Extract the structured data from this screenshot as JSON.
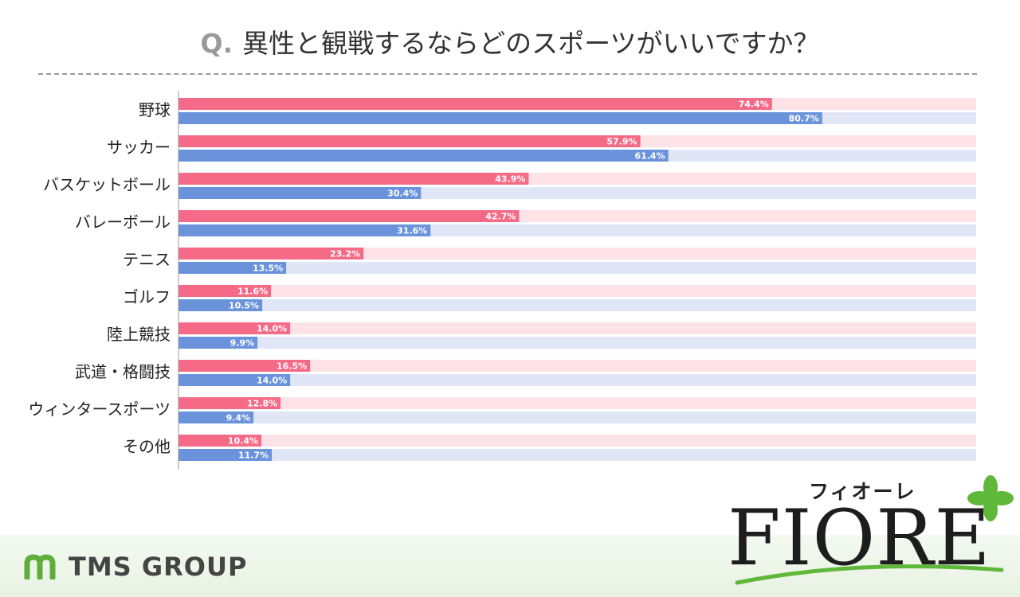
{
  "title": {
    "q_mark": "Q.",
    "text": "異性と観戦するならどのスポーツがいいですか？"
  },
  "chart_data": {
    "type": "bar",
    "orientation": "horizontal",
    "categories": [
      "野球",
      "サッカー",
      "バスケットボール",
      "バレーボール",
      "テニス",
      "ゴルフ",
      "陸上競技",
      "武道・格闘技",
      "ウィンタースポーツ",
      "その他"
    ],
    "series": [
      {
        "color": "#f56b87",
        "track_color": "#fde3e7",
        "values": [
          74.4,
          57.9,
          43.9,
          42.7,
          23.2,
          11.6,
          14.0,
          16.5,
          12.8,
          10.4
        ]
      },
      {
        "color": "#6b93dc",
        "track_color": "#e1e6f6",
        "values": [
          80.7,
          61.4,
          30.4,
          31.6,
          13.5,
          10.5,
          9.9,
          14.0,
          9.4,
          11.7
        ]
      }
    ],
    "value_labels": [
      [
        "74.4%",
        "57.9%",
        "43.9%",
        "42.7%",
        "23.2%",
        "11.6%",
        "14.0%",
        "16.5%",
        "12.8%",
        "10.4%"
      ],
      [
        "80.7%",
        "61.4%",
        "30.4%",
        "31.6%",
        "13.5%",
        "10.5%",
        "9.9%",
        "14.0%",
        "9.4%",
        "11.7%"
      ]
    ],
    "xlim": [
      0,
      100
    ],
    "grid": false,
    "legend": "none"
  },
  "footer": {
    "tms_text": "TMS GROUP",
    "tms_mark_color": "#5fae3c",
    "fiore_kana": "フィオーレ",
    "fiore_word": "FIORE",
    "fiore_leaf_color": "#5fb83a",
    "band_color": "#e8f3e3"
  }
}
